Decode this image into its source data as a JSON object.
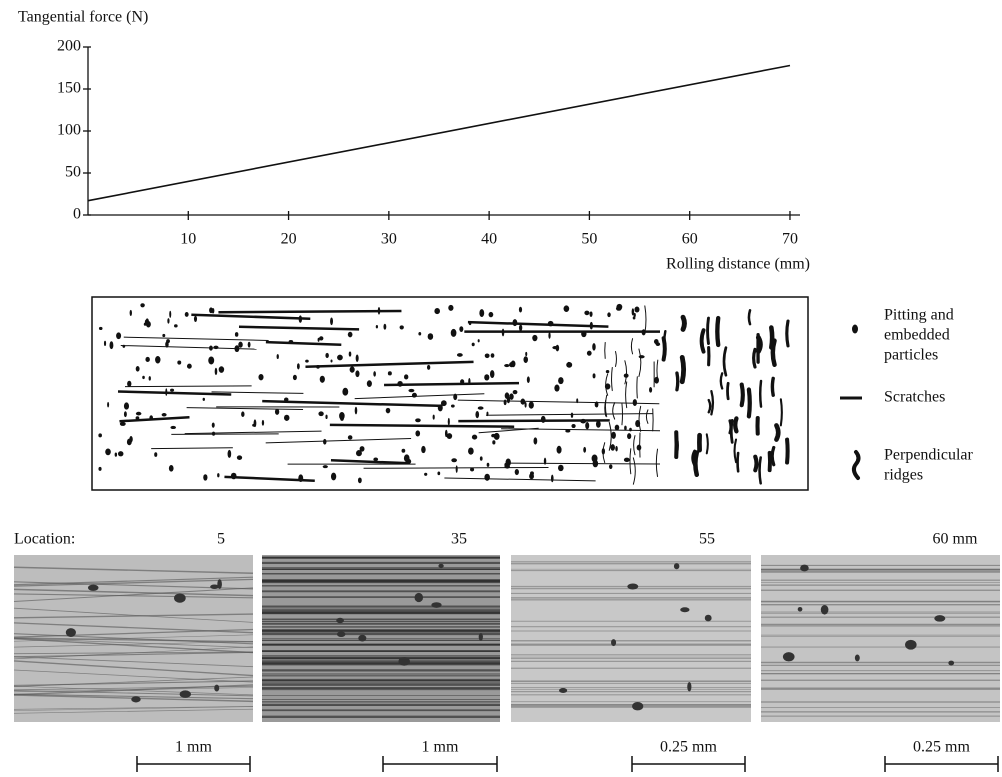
{
  "chart_data": {
    "type": "line",
    "y_axis_label": "Tangential force (N)",
    "x_axis_label": "Rolling distance (mm)",
    "x": [
      0,
      70
    ],
    "series": [
      {
        "color": "#111111",
        "values": [
          17,
          178
        ]
      }
    ],
    "xlim": [
      0,
      71
    ],
    "ylim": [
      0,
      200
    ],
    "xticks": [
      10,
      20,
      30,
      40,
      50,
      60,
      70
    ],
    "yticks": [
      0,
      50,
      100,
      150,
      200
    ]
  },
  "schematic": {
    "legend": [
      {
        "lines": [
          "Pitting and",
          "embedded",
          "particles"
        ]
      },
      {
        "lines": [
          "Scratches"
        ]
      },
      {
        "lines": [
          "Perpendicular",
          "ridges"
        ]
      }
    ]
  },
  "micrographs": {
    "label": "Location:",
    "locations": [
      "5",
      "35",
      "55",
      "60 mm"
    ],
    "scale_bars": [
      "1 mm",
      "1 mm",
      "0.25 mm",
      "0.25 mm"
    ]
  }
}
